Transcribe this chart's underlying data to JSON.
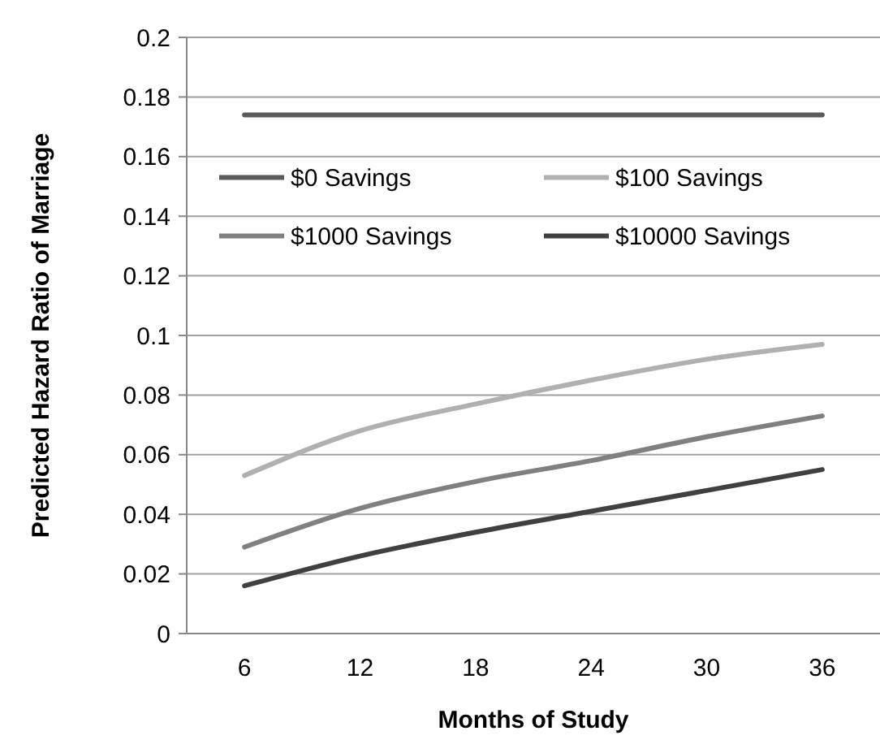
{
  "chart_data": {
    "type": "line",
    "xlabel": "Months of Study",
    "ylabel": "Predicted Hazard Ratio of Marriage",
    "categories": [
      "6",
      "12",
      "18",
      "24",
      "30",
      "36"
    ],
    "series": [
      {
        "name": "$0 Savings",
        "color": "#5a5a5a",
        "values": [
          0.174,
          0.174,
          0.174,
          0.174,
          0.174,
          0.174
        ]
      },
      {
        "name": "$100 Savings",
        "color": "#b0b0b0",
        "values": [
          0.053,
          0.068,
          0.077,
          0.085,
          0.092,
          0.097
        ]
      },
      {
        "name": "$1000 Savings",
        "color": "#808080",
        "values": [
          0.029,
          0.042,
          0.051,
          0.058,
          0.066,
          0.073
        ]
      },
      {
        "name": "$10000 Savings",
        "color": "#404040",
        "values": [
          0.016,
          0.026,
          0.034,
          0.041,
          0.048,
          0.055
        ]
      }
    ],
    "ylim": [
      0,
      0.2
    ],
    "yticks": [
      0,
      0.02,
      0.04,
      0.06,
      0.08,
      {
        "value": 0.1,
        "label": "0.1"
      },
      0.12,
      0.14,
      0.16,
      0.18,
      {
        "value": 0.2,
        "label": "0.2"
      }
    ],
    "grid": "y",
    "legend": "top",
    "marker": "none",
    "line_style": "solid"
  }
}
